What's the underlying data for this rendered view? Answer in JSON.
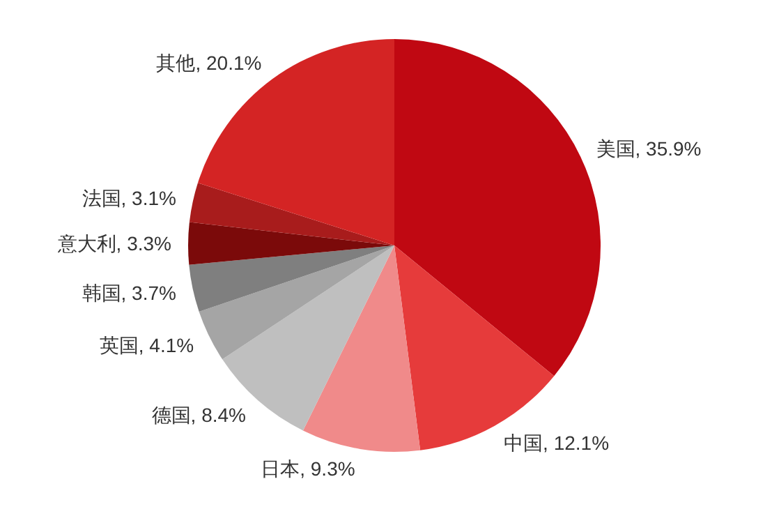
{
  "chart_data": {
    "type": "pie",
    "categories": [
      "美国",
      "中国",
      "日本",
      "德国",
      "英国",
      "韩国",
      "意大利",
      "法国",
      "其他"
    ],
    "values": [
      35.9,
      12.1,
      9.3,
      8.4,
      4.1,
      3.7,
      3.3,
      3.1,
      20.1
    ],
    "colors": [
      "#c00812",
      "#e63b3b",
      "#f08a8a",
      "#bfbfbf",
      "#a5a5a5",
      "#7f7f7f",
      "#7b0a0a",
      "#a81c1c",
      "#d42424"
    ],
    "value_labels": [
      ", 35.9%",
      ", 12.1%",
      ", 9.3%",
      ", 8.4%",
      ", 4.1%",
      ", 3.7%",
      ", 3.3%",
      ", 3.1%",
      ", 20.1%"
    ]
  }
}
